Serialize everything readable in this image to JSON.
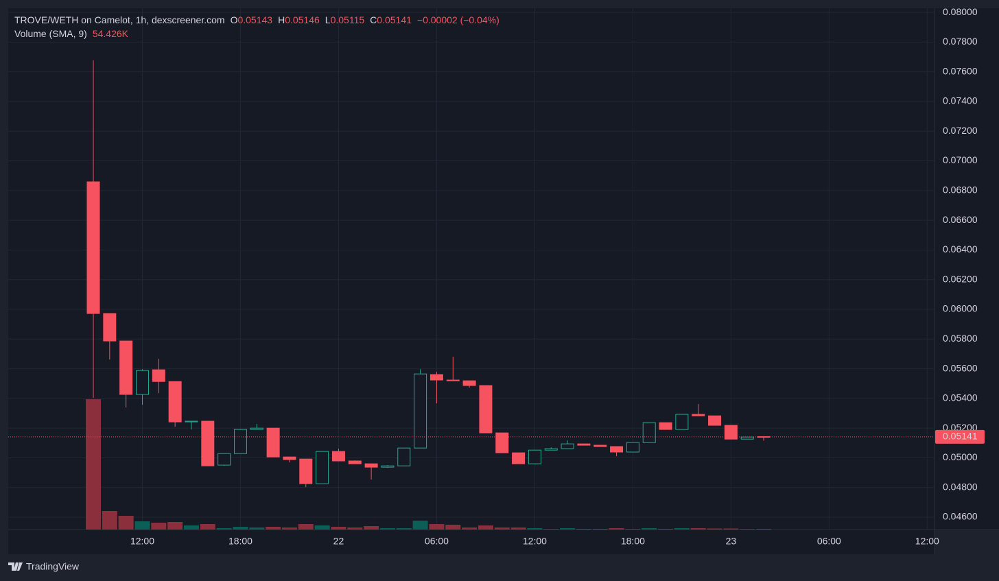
{
  "chart_data": {
    "type": "candlestick",
    "title": "TROVE/WETH on Camelot, 1h, dexscreener.com",
    "ohlc_labels": [
      "O",
      "H",
      "L",
      "C"
    ],
    "change": "−0.00002 (−0.04%)",
    "volume_indicator": {
      "name": "Volume (SMA, 9)",
      "value_label": "54.426K"
    },
    "brand": "TradingView",
    "up_color": "#22ab94",
    "down_color": "#f7525f",
    "up_volume_color": "#0b5f57",
    "down_volume_color": "#8c2f3c",
    "open": [
      0.06859,
      0.05972,
      0.05787,
      0.05427,
      0.05593,
      0.05514,
      0.05242,
      0.05247,
      0.04951,
      0.05029,
      0.05191,
      0.052,
      0.05006,
      0.04992,
      0.04826,
      0.05043,
      0.04979,
      0.0496,
      0.04937,
      0.04946,
      0.05066,
      0.05561,
      0.05524,
      0.05519,
      0.05487,
      0.05168,
      0.05034,
      0.0496,
      0.05052,
      0.05062,
      0.05094,
      0.05085,
      0.05076,
      0.05039,
      0.05103,
      0.05237,
      0.05191,
      0.05293,
      0.05283,
      0.05219,
      0.05126,
      0.05143
    ],
    "high": [
      0.07677,
      0.05972,
      0.05787,
      0.05597,
      0.05667,
      0.05514,
      0.05247,
      0.05247,
      0.05029,
      0.05195,
      0.05228,
      0.052,
      0.05006,
      0.04992,
      0.05043,
      0.05062,
      0.04983,
      0.0496,
      0.04951,
      0.05066,
      0.05597,
      0.05579,
      0.05681,
      0.05519,
      0.05487,
      0.05168,
      0.05034,
      0.05052,
      0.05071,
      0.05117,
      0.05094,
      0.05085,
      0.05076,
      0.05103,
      0.05237,
      0.05237,
      0.05293,
      0.05362,
      0.05283,
      0.05219,
      0.0514,
      0.05146
    ],
    "low": [
      0.05404,
      0.05662,
      0.05339,
      0.05357,
      0.05436,
      0.0521,
      0.05191,
      0.04946,
      0.04946,
      0.05029,
      0.05191,
      0.05006,
      0.04969,
      0.04803,
      0.04826,
      0.04979,
      0.0496,
      0.04854,
      0.04932,
      0.04946,
      0.05066,
      0.05367,
      0.05519,
      0.05473,
      0.05168,
      0.05034,
      0.0496,
      0.0496,
      0.05052,
      0.05062,
      0.05085,
      0.05076,
      0.05011,
      0.05039,
      0.05103,
      0.05191,
      0.05191,
      0.05283,
      0.05219,
      0.05126,
      0.05126,
      0.05115
    ],
    "close": [
      0.05972,
      0.05787,
      0.05427,
      0.05588,
      0.05514,
      0.05242,
      0.05247,
      0.04946,
      0.05029,
      0.05191,
      0.052,
      0.05006,
      0.04988,
      0.04826,
      0.05043,
      0.04979,
      0.0496,
      0.04937,
      0.04946,
      0.05066,
      0.05565,
      0.05524,
      0.05519,
      0.05487,
      0.05168,
      0.05034,
      0.0496,
      0.05052,
      0.05062,
      0.05094,
      0.05085,
      0.05076,
      0.05039,
      0.05103,
      0.05237,
      0.05191,
      0.05293,
      0.05283,
      0.05219,
      0.05126,
      0.0514,
      0.05141
    ],
    "volume": [
      4750000,
      675000,
      500000,
      300000,
      250000,
      275000,
      150000,
      200000,
      50000,
      100000,
      75000,
      100000,
      75000,
      200000,
      150000,
      100000,
      75000,
      125000,
      50000,
      50000,
      325000,
      200000,
      175000,
      75000,
      150000,
      75000,
      75000,
      50000,
      25000,
      50000,
      25000,
      25000,
      50000,
      25000,
      50000,
      25000,
      50000,
      50000,
      37500,
      37500,
      25000,
      25000
    ],
    "xticks": [
      {
        "value": 3,
        "label": "12:00"
      },
      {
        "value": 9,
        "label": "18:00"
      },
      {
        "value": 15,
        "label": "22"
      },
      {
        "value": 21,
        "label": "06:00"
      },
      {
        "value": 27,
        "label": "12:00"
      },
      {
        "value": 33,
        "label": "18:00"
      },
      {
        "value": 39,
        "label": "23"
      },
      {
        "value": 45,
        "label": "06:00"
      },
      {
        "value": 51,
        "label": "12:00"
      }
    ],
    "ylim": [
      0.04517,
      0.08028
    ],
    "yticks": [
      {
        "value": 0.046,
        "label": "0.04600"
      },
      {
        "value": 0.048,
        "label": "0.04800"
      },
      {
        "value": 0.05,
        "label": "0.05000"
      },
      {
        "value": 0.052,
        "label": "0.05200"
      },
      {
        "value": 0.054,
        "label": "0.05400"
      },
      {
        "value": 0.056,
        "label": "0.05600"
      },
      {
        "value": 0.058,
        "label": "0.05800"
      },
      {
        "value": 0.06,
        "label": "0.06000"
      },
      {
        "value": 0.062,
        "label": "0.06200"
      },
      {
        "value": 0.064,
        "label": "0.06400"
      },
      {
        "value": 0.066,
        "label": "0.06600"
      },
      {
        "value": 0.068,
        "label": "0.06800"
      },
      {
        "value": 0.07,
        "label": "0.07000"
      },
      {
        "value": 0.072,
        "label": "0.07200"
      },
      {
        "value": 0.074,
        "label": "0.07400"
      },
      {
        "value": 0.076,
        "label": "0.07600"
      },
      {
        "value": 0.078,
        "label": "0.07800"
      },
      {
        "value": 0.08,
        "label": "0.08000"
      }
    ],
    "grid": true
  }
}
